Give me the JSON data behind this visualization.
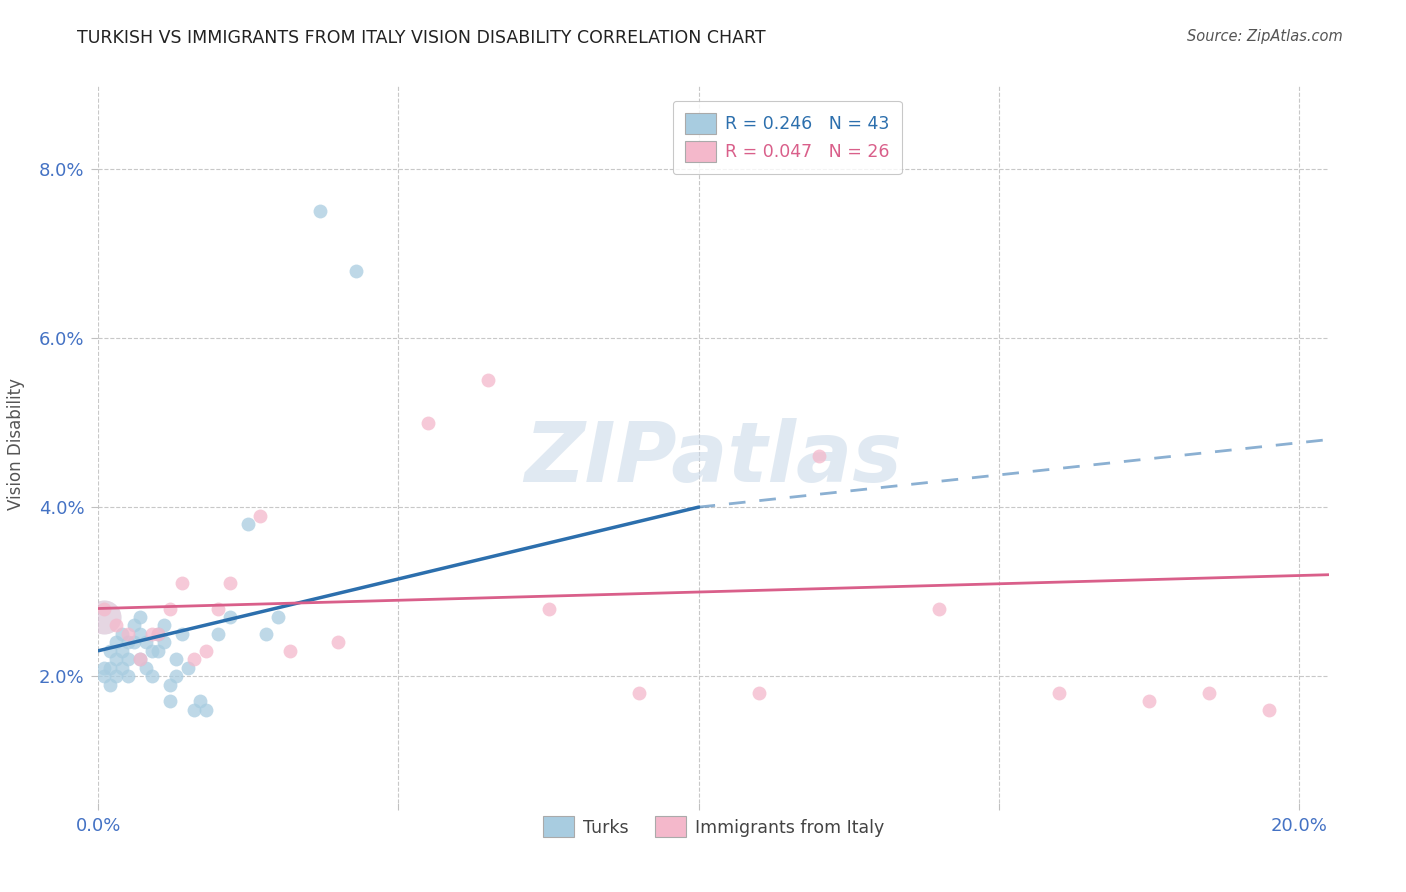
{
  "title": "TURKISH VS IMMIGRANTS FROM ITALY VISION DISABILITY CORRELATION CHART",
  "source": "Source: ZipAtlas.com",
  "ylabel": "Vision Disability",
  "xlim": [
    0.0,
    0.205
  ],
  "ylim": [
    0.005,
    0.09
  ],
  "xtick_positions": [
    0.0,
    0.05,
    0.1,
    0.15,
    0.2
  ],
  "xtick_labels": [
    "0.0%",
    "",
    "",
    "",
    "20.0%"
  ],
  "ytick_positions": [
    0.02,
    0.04,
    0.06,
    0.08
  ],
  "ytick_labels": [
    "2.0%",
    "4.0%",
    "6.0%",
    "8.0%"
  ],
  "legend_r_blue": "R = 0.246",
  "legend_n_blue": "N = 43",
  "legend_r_pink": "R = 0.047",
  "legend_n_pink": "N = 26",
  "blue_label": "Turks",
  "pink_label": "Immigrants from Italy",
  "watermark": "ZIPatlas",
  "blue_scatter_color": "#a8cce0",
  "pink_scatter_color": "#f4b8cb",
  "blue_line_color": "#2c6fad",
  "pink_line_color": "#d95f8a",
  "turks_x": [
    0.001,
    0.001,
    0.002,
    0.002,
    0.002,
    0.003,
    0.003,
    0.003,
    0.004,
    0.004,
    0.004,
    0.005,
    0.005,
    0.005,
    0.006,
    0.006,
    0.007,
    0.007,
    0.007,
    0.008,
    0.008,
    0.009,
    0.009,
    0.01,
    0.01,
    0.011,
    0.011,
    0.012,
    0.012,
    0.013,
    0.013,
    0.014,
    0.015,
    0.016,
    0.017,
    0.018,
    0.02,
    0.022,
    0.025,
    0.028,
    0.03,
    0.037,
    0.043
  ],
  "turks_y": [
    0.021,
    0.02,
    0.023,
    0.021,
    0.019,
    0.024,
    0.022,
    0.02,
    0.025,
    0.023,
    0.021,
    0.024,
    0.022,
    0.02,
    0.026,
    0.024,
    0.027,
    0.025,
    0.022,
    0.024,
    0.021,
    0.023,
    0.02,
    0.025,
    0.023,
    0.026,
    0.024,
    0.019,
    0.017,
    0.022,
    0.02,
    0.025,
    0.021,
    0.016,
    0.017,
    0.016,
    0.025,
    0.027,
    0.038,
    0.025,
    0.027,
    0.075,
    0.068
  ],
  "italy_x": [
    0.001,
    0.003,
    0.005,
    0.007,
    0.009,
    0.01,
    0.012,
    0.014,
    0.016,
    0.018,
    0.02,
    0.022,
    0.027,
    0.032,
    0.04,
    0.055,
    0.065,
    0.075,
    0.09,
    0.11,
    0.12,
    0.14,
    0.16,
    0.175,
    0.185,
    0.195
  ],
  "italy_y": [
    0.028,
    0.026,
    0.025,
    0.022,
    0.025,
    0.025,
    0.028,
    0.031,
    0.022,
    0.023,
    0.028,
    0.031,
    0.039,
    0.023,
    0.024,
    0.05,
    0.055,
    0.028,
    0.018,
    0.018,
    0.046,
    0.028,
    0.018,
    0.017,
    0.018,
    0.016
  ],
  "blue_line_x0": 0.0,
  "blue_line_y0": 0.023,
  "blue_line_x1": 0.1,
  "blue_line_y1": 0.04,
  "blue_line_dash_x1": 0.205,
  "blue_line_dash_y1": 0.048,
  "pink_line_x0": 0.0,
  "pink_line_y0": 0.028,
  "pink_line_x1": 0.205,
  "pink_line_y1": 0.032
}
